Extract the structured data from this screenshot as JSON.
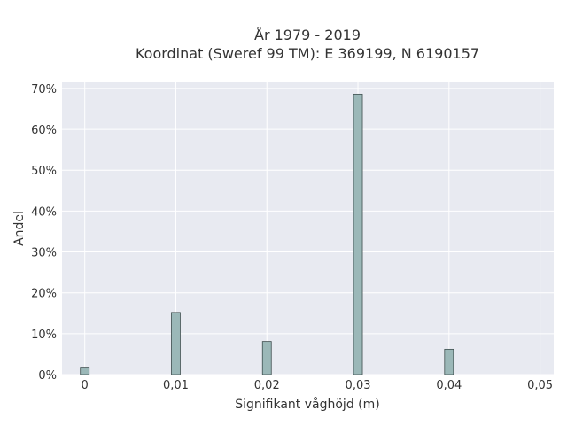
{
  "chart_data": {
    "type": "bar",
    "title_lines": [
      "År 1979 - 2019",
      "Koordinat (Sweref 99 TM): E 369199, N 6190157"
    ],
    "xlabel": "Signifikant våghöjd (m)",
    "ylabel": "Andel",
    "x_ticks": [
      {
        "value": 0,
        "label": "0"
      },
      {
        "value": 0.01,
        "label": "0,01"
      },
      {
        "value": 0.02,
        "label": "0,02"
      },
      {
        "value": 0.03,
        "label": "0,03"
      },
      {
        "value": 0.04,
        "label": "0,04"
      },
      {
        "value": 0.05,
        "label": "0,05"
      }
    ],
    "y_ticks": [
      {
        "value": 0,
        "label": "0%"
      },
      {
        "value": 10,
        "label": "10%"
      },
      {
        "value": 20,
        "label": "20%"
      },
      {
        "value": 30,
        "label": "30%"
      },
      {
        "value": 40,
        "label": "40%"
      },
      {
        "value": 50,
        "label": "50%"
      },
      {
        "value": 60,
        "label": "60%"
      },
      {
        "value": 70,
        "label": "70%"
      }
    ],
    "x": [
      0,
      0.01,
      0.02,
      0.03,
      0.04
    ],
    "values": [
      1.6,
      15.2,
      8.1,
      68.6,
      6.2
    ],
    "xlim": [
      -0.0025,
      0.0515
    ],
    "ylim": [
      0,
      71.5
    ],
    "grid": true,
    "colors": {
      "plot_bg": "#e8eaf1",
      "bar": "#9bb8b8",
      "bar_edge": "#3f4f4f"
    }
  }
}
